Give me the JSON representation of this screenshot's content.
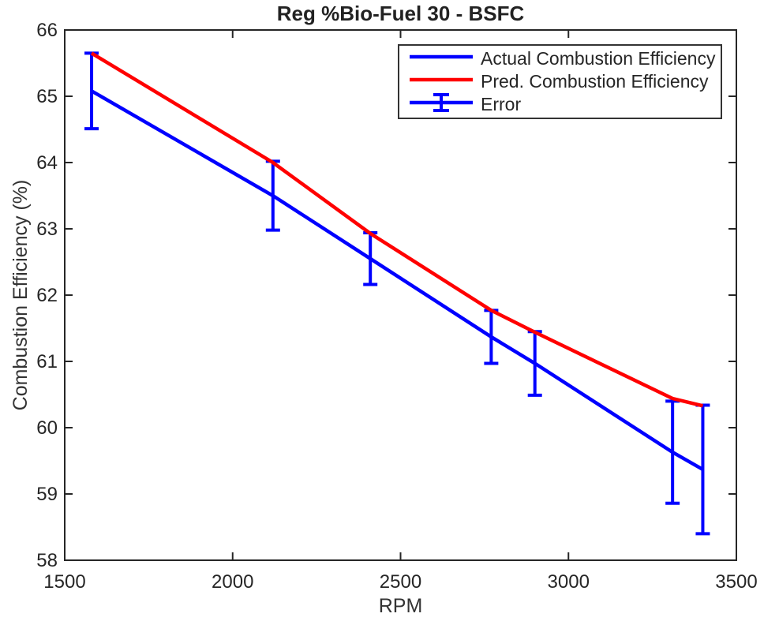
{
  "chart_data": {
    "type": "line",
    "title": "Reg %Bio-Fuel 30 - BSFC",
    "xlabel": "RPM",
    "ylabel": "Combustion Efficiency (%)",
    "xlim": [
      1500,
      3500
    ],
    "ylim": [
      58,
      66
    ],
    "xticks": [
      1500,
      2000,
      2500,
      3000,
      3500
    ],
    "yticks": [
      58,
      59,
      60,
      61,
      62,
      63,
      64,
      65,
      66
    ],
    "grid": false,
    "box": true,
    "axis_color": "#262626",
    "background": "#ffffff",
    "x": [
      1580,
      2120,
      2410,
      2770,
      2900,
      3310,
      3400
    ],
    "series": [
      {
        "name": "Actual Combustion Efficiency",
        "color": "#0000ff",
        "line_width": 4.5,
        "values": [
          65.08,
          63.5,
          62.55,
          61.37,
          60.97,
          59.63,
          59.37
        ]
      },
      {
        "name": "Pred. Combustion Efficiency",
        "color": "#ff0000",
        "line_width": 4.5,
        "values": [
          65.65,
          64.0,
          62.93,
          61.77,
          61.44,
          60.44,
          60.33
        ]
      }
    ],
    "error_bars": {
      "attached_to": "Actual Combustion Efficiency",
      "color": "#0000ff",
      "plus_minus": [
        0.57,
        0.52,
        0.39,
        0.4,
        0.48,
        0.77,
        0.97
      ]
    },
    "legend_position": "top-right-inside",
    "legend": [
      {
        "label": "Actual Combustion Efficiency",
        "color": "#0000ff",
        "glyph": "line"
      },
      {
        "label": "Pred. Combustion Efficiency",
        "color": "#ff0000",
        "glyph": "line"
      },
      {
        "label": "Error",
        "color": "#0000ff",
        "glyph": "errorbar"
      }
    ]
  }
}
